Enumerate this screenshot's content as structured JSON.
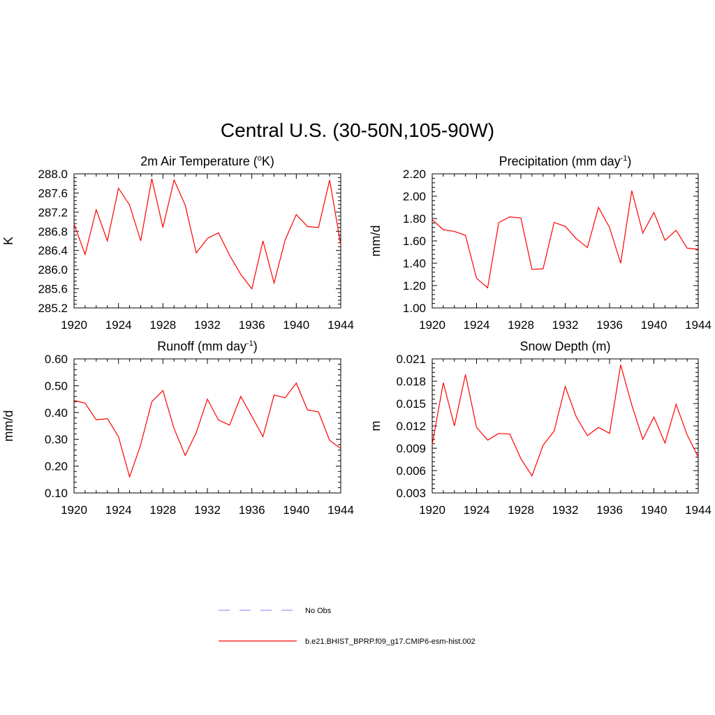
{
  "main_title": "Central U.S. (30-50N,105-90W)",
  "colors": {
    "model": "#ff0000",
    "obs": "#9999ff",
    "axis": "#000000"
  },
  "legend": {
    "obs_label": "No Obs",
    "model_label": "b.e21.BHIST_BPRP.f09_g17.CMIP6-esm-hist.002"
  },
  "chart_data": [
    {
      "type": "line",
      "title": "2m Air Temperature (",
      "title_sup": "o",
      "title_tail": "K)",
      "ylabel": "K",
      "xlabel": "",
      "xlim": [
        1920,
        1944
      ],
      "ylim": [
        285.2,
        288.0
      ],
      "xticks": [
        "1920",
        "1924",
        "1928",
        "1932",
        "1936",
        "1940",
        "1944"
      ],
      "yticks": [
        "285.2",
        "285.6",
        "286.0",
        "286.4",
        "286.8",
        "287.2",
        "287.6",
        "288.0"
      ],
      "series": [
        {
          "name": "b.e21.BHIST_BPRP.f09_g17.CMIP6-esm-hist.002",
          "x": [
            1920,
            1921,
            1922,
            1923,
            1924,
            1925,
            1926,
            1927,
            1928,
            1929,
            1930,
            1931,
            1932,
            1933,
            1934,
            1935,
            1936,
            1937,
            1938,
            1939,
            1940,
            1941,
            1942,
            1943,
            1944
          ],
          "values": [
            286.95,
            286.32,
            287.25,
            286.6,
            287.7,
            287.35,
            286.6,
            287.9,
            286.88,
            287.87,
            287.35,
            286.35,
            286.65,
            286.77,
            286.3,
            285.9,
            285.6,
            286.6,
            285.72,
            286.62,
            287.15,
            286.9,
            286.88,
            287.87,
            286.52
          ]
        }
      ]
    },
    {
      "type": "line",
      "title": "Precipitation (mm day",
      "title_sup": "-1",
      "title_tail": ")",
      "ylabel": "mm/d",
      "xlabel": "",
      "xlim": [
        1920,
        1944
      ],
      "ylim": [
        1.0,
        2.2
      ],
      "xticks": [
        "1920",
        "1924",
        "1928",
        "1932",
        "1936",
        "1940",
        "1944"
      ],
      "yticks": [
        "1.00",
        "1.20",
        "1.40",
        "1.60",
        "1.80",
        "2.00",
        "2.20"
      ],
      "series": [
        {
          "name": "b.e21.BHIST_BPRP.f09_g17.CMIP6-esm-hist.002",
          "x": [
            1920,
            1921,
            1922,
            1923,
            1924,
            1925,
            1926,
            1927,
            1928,
            1929,
            1930,
            1931,
            1932,
            1933,
            1934,
            1935,
            1936,
            1937,
            1938,
            1939,
            1940,
            1941,
            1942,
            1943,
            1944
          ],
          "values": [
            1.79,
            1.7,
            1.685,
            1.65,
            1.265,
            1.18,
            1.765,
            1.815,
            1.805,
            1.345,
            1.35,
            1.765,
            1.73,
            1.62,
            1.54,
            1.9,
            1.72,
            1.4,
            2.05,
            1.67,
            1.855,
            1.605,
            1.695,
            1.535,
            1.525
          ]
        }
      ]
    },
    {
      "type": "line",
      "title": "Runoff (mm day",
      "title_sup": "-1",
      "title_tail": ")",
      "ylabel": "mm/d",
      "xlabel": "",
      "xlim": [
        1920,
        1944
      ],
      "ylim": [
        0.1,
        0.6
      ],
      "xticks": [
        "1920",
        "1924",
        "1928",
        "1932",
        "1936",
        "1940",
        "1944"
      ],
      "yticks": [
        "0.10",
        "0.20",
        "0.30",
        "0.40",
        "0.50",
        "0.60"
      ],
      "series": [
        {
          "name": "b.e21.BHIST_BPRP.f09_g17.CMIP6-esm-hist.002",
          "x": [
            1920,
            1921,
            1922,
            1923,
            1924,
            1925,
            1926,
            1927,
            1928,
            1929,
            1930,
            1931,
            1932,
            1933,
            1934,
            1935,
            1936,
            1937,
            1938,
            1939,
            1940,
            1941,
            1942,
            1943,
            1944
          ],
          "values": [
            0.445,
            0.435,
            0.373,
            0.377,
            0.31,
            0.16,
            0.28,
            0.44,
            0.482,
            0.34,
            0.24,
            0.325,
            0.45,
            0.372,
            0.353,
            0.46,
            0.386,
            0.31,
            0.465,
            0.455,
            0.51,
            0.41,
            0.402,
            0.296,
            0.266
          ]
        }
      ]
    },
    {
      "type": "line",
      "title": "Snow Depth (m)",
      "title_sup": "",
      "title_tail": "",
      "ylabel": "m",
      "xlabel": "",
      "xlim": [
        1920,
        1944
      ],
      "ylim": [
        0.003,
        0.021
      ],
      "xticks": [
        "1920",
        "1924",
        "1928",
        "1932",
        "1936",
        "1940",
        "1944"
      ],
      "yticks": [
        "0.003",
        "0.006",
        "0.009",
        "0.012",
        "0.015",
        "0.018",
        "0.021"
      ],
      "series": [
        {
          "name": "b.e21.BHIST_BPRP.f09_g17.CMIP6-esm-hist.002",
          "x": [
            1920,
            1921,
            1922,
            1923,
            1924,
            1925,
            1926,
            1927,
            1928,
            1929,
            1930,
            1931,
            1932,
            1933,
            1934,
            1935,
            1936,
            1937,
            1938,
            1939,
            1940,
            1941,
            1942,
            1943,
            1944
          ],
          "values": [
            0.0095,
            0.0178,
            0.012,
            0.0189,
            0.0118,
            0.0101,
            0.011,
            0.0109,
            0.0076,
            0.0053,
            0.0094,
            0.0113,
            0.0173,
            0.0132,
            0.0107,
            0.0118,
            0.011,
            0.0202,
            0.0148,
            0.0102,
            0.0132,
            0.0097,
            0.0149,
            0.0108,
            0.0078
          ]
        }
      ]
    }
  ]
}
